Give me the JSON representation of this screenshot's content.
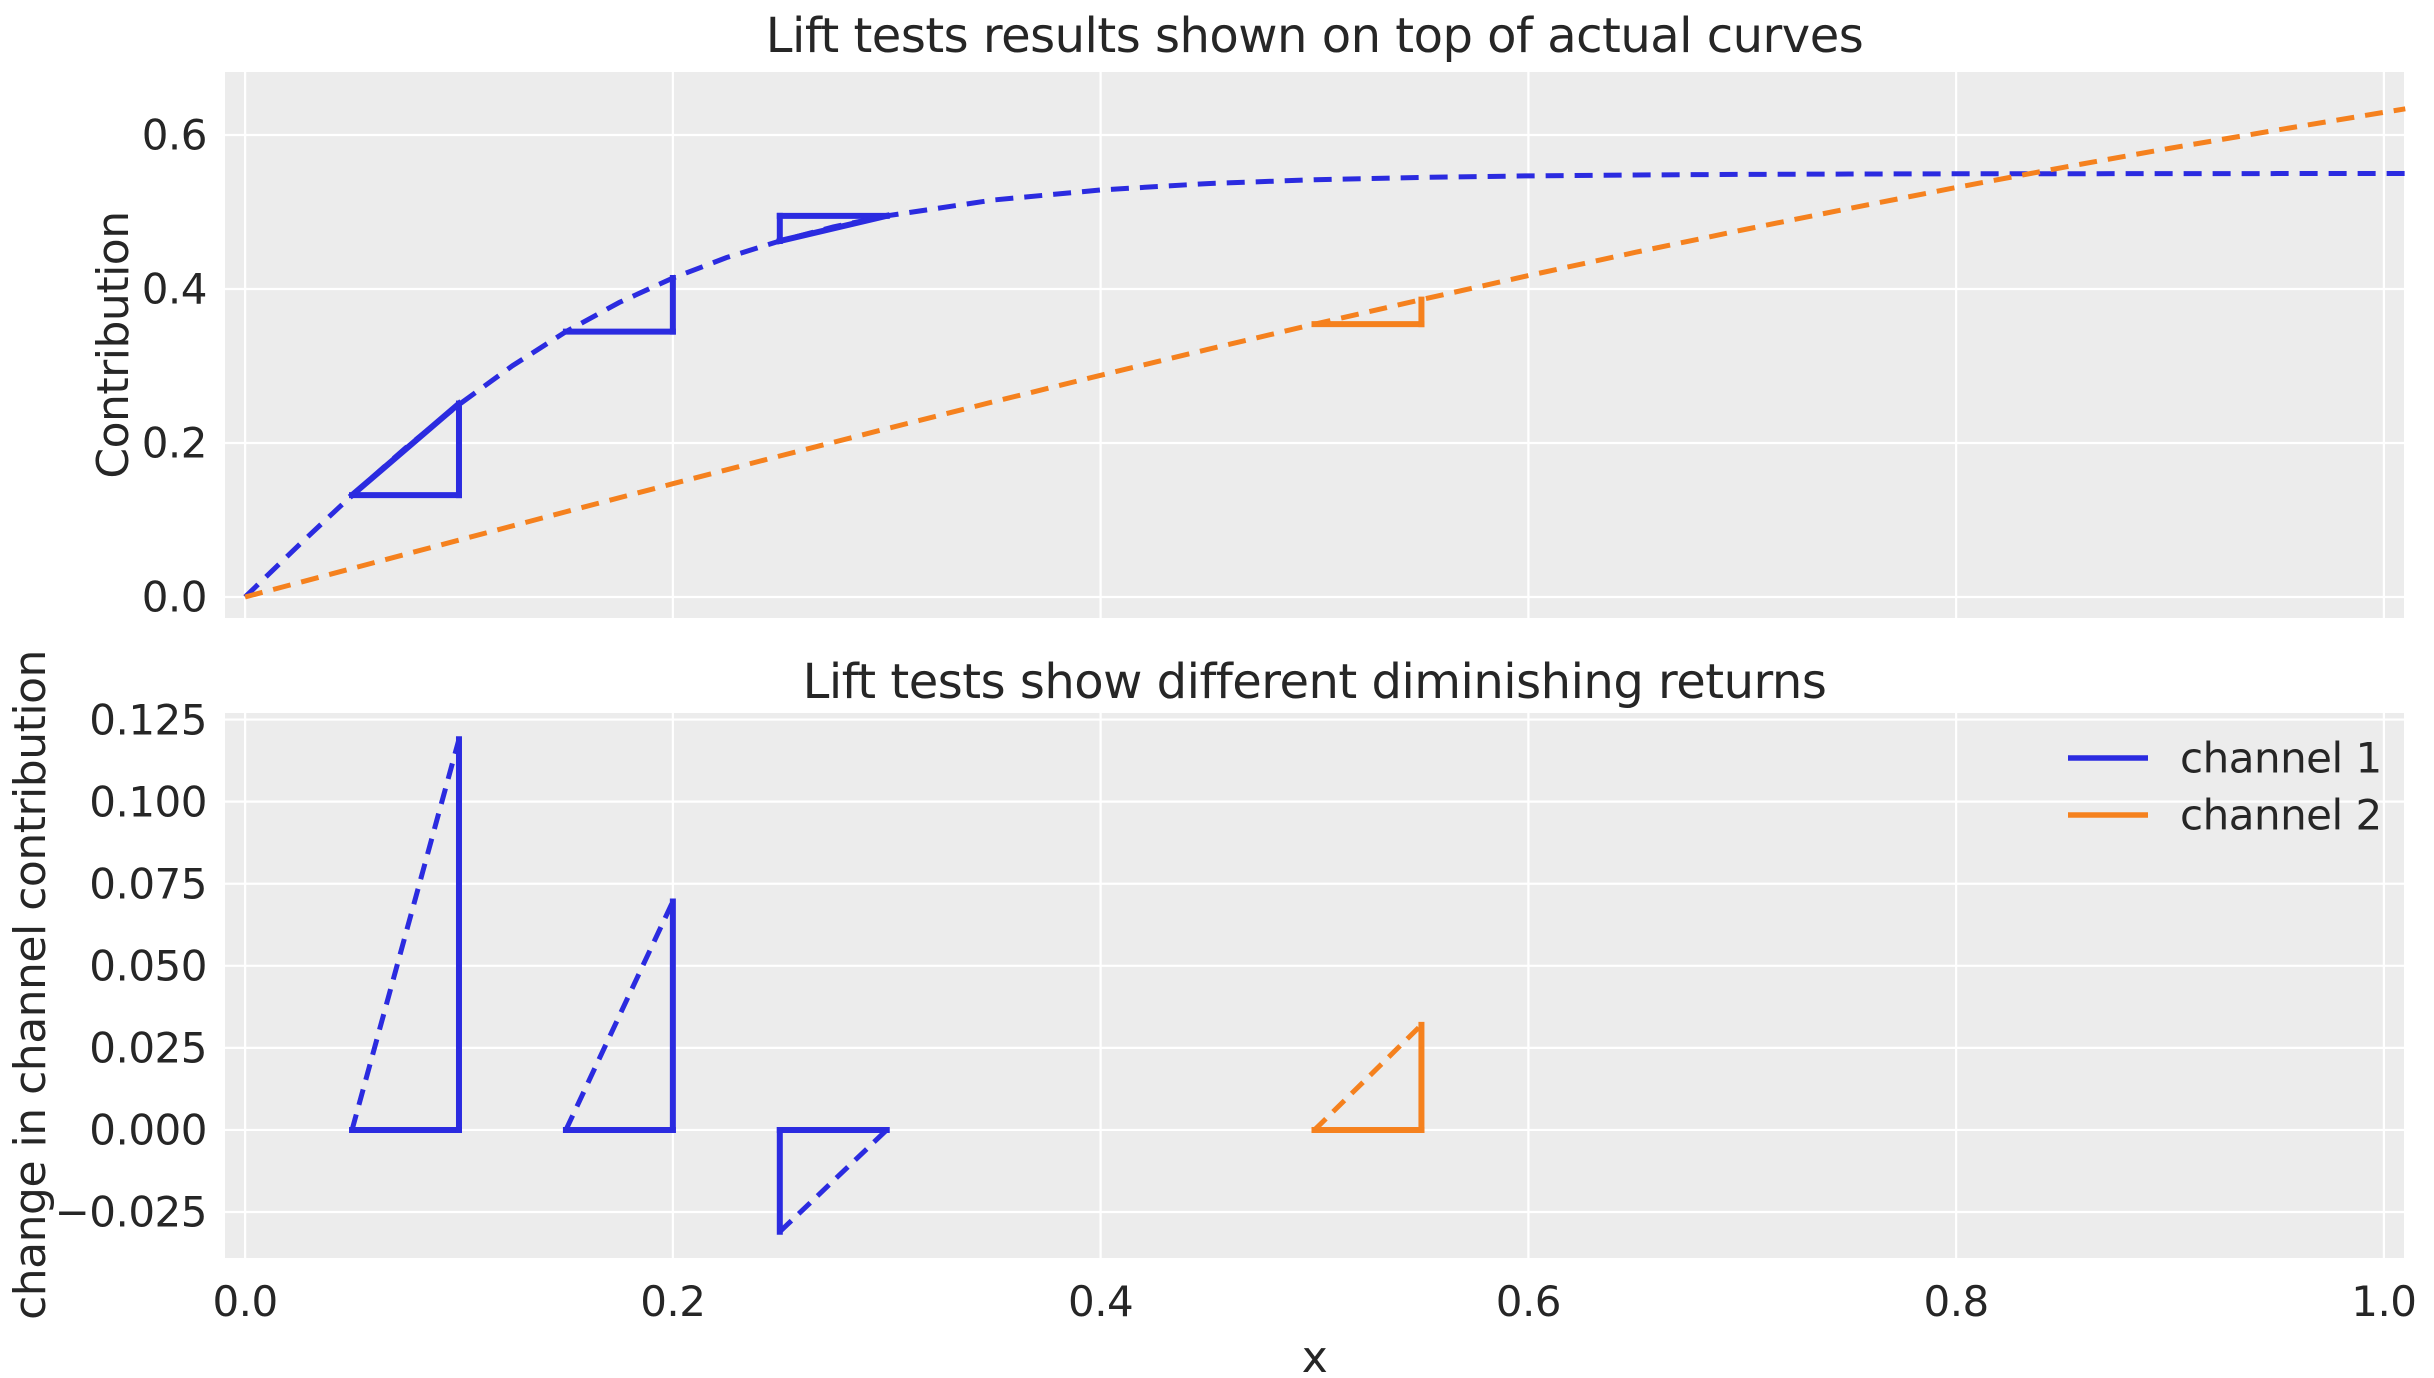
{
  "figure": {
    "background": "#ffffff",
    "axes_background": "#ececec",
    "grid_color": "#ffffff",
    "text_color": "#262626"
  },
  "colors": {
    "channel1_blue": "#2b2be0",
    "channel2_orange": "#f5811e"
  },
  "legend": {
    "position": "upper right",
    "items": [
      {
        "label": "channel 1",
        "color": "#2b2be0"
      },
      {
        "label": "channel 2",
        "color": "#f5811e"
      }
    ]
  },
  "chart_data": [
    {
      "type": "line",
      "title": "Lift tests results shown on top of actual curves",
      "xlabel": "",
      "ylabel": "Contribution",
      "xlim": [
        -0.0094,
        1.0094
      ],
      "ylim": [
        -0.0273,
        0.6818
      ],
      "grid": true,
      "x_ticks": {
        "values": [
          0.0,
          0.2,
          0.4,
          0.6,
          0.8,
          1.0
        ],
        "labels": []
      },
      "y_ticks": {
        "values": [
          0.0,
          0.2,
          0.4,
          0.6
        ],
        "labels": [
          "0.0",
          "0.2",
          "0.4",
          "0.6"
        ]
      },
      "series": [
        {
          "name": "channel 1",
          "style": "dashed",
          "color": "#2b2be0",
          "points": [
            [
              0,
              0
            ],
            [
              0.025,
              0.067
            ],
            [
              0.05,
              0.1322
            ],
            [
              0.075,
              0.1935
            ],
            [
              0.1,
              0.2499
            ],
            [
              0.125,
              0.3003
            ],
            [
              0.15,
              0.3446
            ],
            [
              0.175,
              0.3826
            ],
            [
              0.2,
              0.4142
            ],
            [
              0.225,
              0.4407
            ],
            [
              0.25,
              0.4623
            ],
            [
              0.275,
              0.4806
            ],
            [
              0.3,
              0.495
            ],
            [
              0.35,
              0.5156
            ],
            [
              0.4,
              0.5286
            ],
            [
              0.45,
              0.5369
            ],
            [
              0.5,
              0.5419
            ],
            [
              0.55,
              0.5449
            ],
            [
              0.6,
              0.5469
            ],
            [
              0.65,
              0.5481
            ],
            [
              0.7,
              0.5488
            ],
            [
              0.75,
              0.5493
            ],
            [
              0.8,
              0.5496
            ],
            [
              0.85,
              0.5497
            ],
            [
              0.9,
              0.5498
            ],
            [
              0.95,
              0.5499
            ],
            [
              1.01,
              0.5499
            ]
          ]
        },
        {
          "name": "channel 2",
          "style": "dashed",
          "color": "#f5811e",
          "points": [
            [
              0,
              0
            ],
            [
              0.05,
              0.037
            ],
            [
              0.1,
              0.0739
            ],
            [
              0.15,
              0.1107
            ],
            [
              0.2,
              0.1471
            ],
            [
              0.25,
              0.1831
            ],
            [
              0.3,
              0.2186
            ],
            [
              0.35,
              0.2536
            ],
            [
              0.4,
              0.2879
            ],
            [
              0.45,
              0.3215
            ],
            [
              0.5,
              0.3543
            ],
            [
              0.55,
              0.3862
            ],
            [
              0.6,
              0.4174
            ],
            [
              0.65,
              0.4476
            ],
            [
              0.7,
              0.4766
            ],
            [
              0.75,
              0.5046
            ],
            [
              0.8,
              0.5318
            ],
            [
              0.85,
              0.5579
            ],
            [
              0.9,
              0.5828
            ],
            [
              0.95,
              0.6064
            ],
            [
              1.01,
              0.634
            ]
          ]
        }
      ],
      "lift_test_overlays": [
        {
          "channel": "channel 1",
          "color": "#2b2be0",
          "solid_segments": [
            [
              [
                0.05,
                0.1322
              ],
              [
                0.1,
                0.1322
              ]
            ],
            [
              [
                0.1,
                0.1322
              ],
              [
                0.1,
                0.2512
              ]
            ],
            [
              [
                0.05,
                0.1322
              ],
              [
                0.1,
                0.2512
              ]
            ]
          ]
        },
        {
          "channel": "channel 1",
          "color": "#2b2be0",
          "solid_segments": [
            [
              [
                0.15,
                0.3446
              ],
              [
                0.2,
                0.3446
              ]
            ],
            [
              [
                0.2,
                0.3446
              ],
              [
                0.2,
                0.4142
              ]
            ]
          ]
        },
        {
          "channel": "channel 1",
          "color": "#2b2be0",
          "solid_segments": [
            [
              [
                0.25,
                0.495
              ],
              [
                0.3,
                0.495
              ]
            ],
            [
              [
                0.25,
                0.4623
              ],
              [
                0.25,
                0.495
              ]
            ],
            [
              [
                0.25,
                0.4623
              ],
              [
                0.3,
                0.495
              ]
            ]
          ]
        },
        {
          "channel": "channel 2",
          "color": "#f5811e",
          "solid_segments": [
            [
              [
                0.5,
                0.3543
              ],
              [
                0.55,
                0.3543
              ]
            ],
            [
              [
                0.55,
                0.3543
              ],
              [
                0.55,
                0.3862
              ]
            ]
          ]
        }
      ]
    },
    {
      "type": "line",
      "title": "Lift tests show different diminishing returns",
      "xlabel": "x",
      "ylabel": "change in channel contribution",
      "xlim": [
        -0.0094,
        1.0094
      ],
      "ylim": [
        -0.039,
        0.127
      ],
      "grid": true,
      "x_ticks": {
        "values": [
          0.0,
          0.2,
          0.4,
          0.6,
          0.8,
          1.0
        ],
        "labels": [
          "0.0",
          "0.2",
          "0.4",
          "0.6",
          "0.8",
          "1.0"
        ]
      },
      "y_ticks": {
        "values": [
          0.125,
          0.1,
          0.075,
          0.05,
          0.025,
          0.0,
          -0.025
        ],
        "labels": [
          "0.125",
          "0.100",
          "0.075",
          "0.050",
          "0.025",
          "0.000",
          "−0.025"
        ]
      },
      "legend_visible": true,
      "lift_test_values": [
        {
          "channel": "channel 1",
          "x_start": 0.05,
          "x_end": 0.1,
          "measured_change": 0.119
        },
        {
          "channel": "channel 1",
          "x_start": 0.15,
          "x_end": 0.2,
          "measured_change": 0.0696
        },
        {
          "channel": "channel 1",
          "x_start": 0.25,
          "x_end": 0.3,
          "measured_change": -0.031
        },
        {
          "channel": "channel 2",
          "x_start": 0.5,
          "x_end": 0.55,
          "measured_change": 0.032
        }
      ],
      "lift_test_overlays": [
        {
          "channel": "channel 1",
          "color": "#2b2be0",
          "solid_segments": [
            [
              [
                0.05,
                0
              ],
              [
                0.1,
                0
              ]
            ],
            [
              [
                0.1,
                0
              ],
              [
                0.1,
                0.119
              ]
            ]
          ],
          "dashed_segments": [
            [
              [
                0.05,
                0
              ],
              [
                0.1,
                0.119
              ]
            ]
          ]
        },
        {
          "channel": "channel 1",
          "color": "#2b2be0",
          "solid_segments": [
            [
              [
                0.15,
                0
              ],
              [
                0.2,
                0
              ]
            ],
            [
              [
                0.2,
                0
              ],
              [
                0.2,
                0.0696
              ]
            ]
          ],
          "dashed_segments": [
            [
              [
                0.15,
                0
              ],
              [
                0.2,
                0.0696
              ]
            ]
          ]
        },
        {
          "channel": "channel 1",
          "color": "#2b2be0",
          "solid_segments": [
            [
              [
                0.25,
                0
              ],
              [
                0.3,
                0
              ]
            ],
            [
              [
                0.25,
                -0.031
              ],
              [
                0.25,
                0
              ]
            ]
          ],
          "dashed_segments": [
            [
              [
                0.25,
                -0.031
              ],
              [
                0.3,
                0
              ]
            ]
          ]
        },
        {
          "channel": "channel 2",
          "color": "#f5811e",
          "solid_segments": [
            [
              [
                0.5,
                0
              ],
              [
                0.55,
                0
              ]
            ],
            [
              [
                0.55,
                0
              ],
              [
                0.55,
                0.032
              ]
            ]
          ],
          "dashed_segments": [
            [
              [
                0.5,
                0
              ],
              [
                0.55,
                0.032
              ]
            ]
          ]
        }
      ]
    }
  ]
}
